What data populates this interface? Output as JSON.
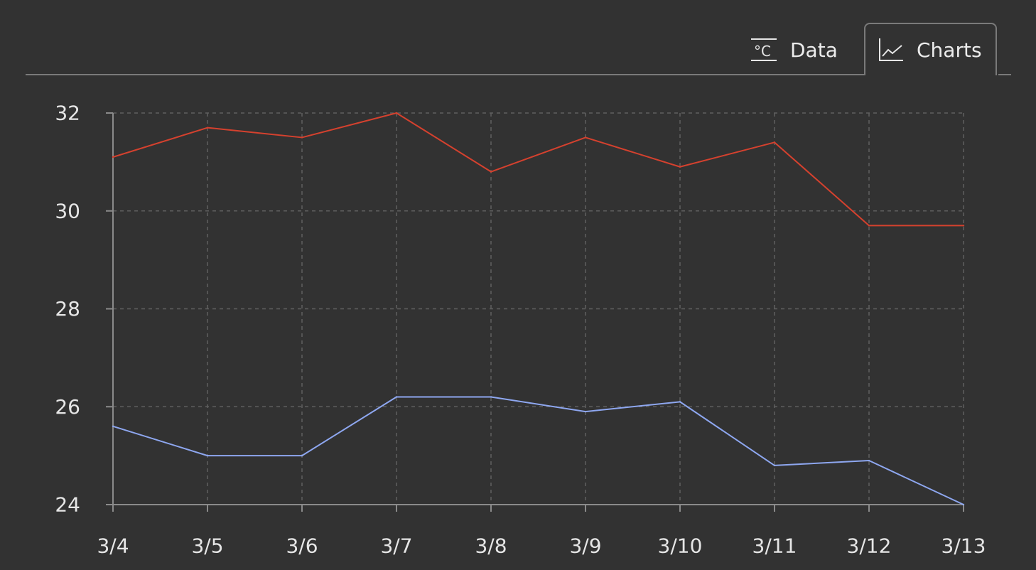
{
  "tabs": [
    {
      "label": "Data",
      "icon": "thermometer-celsius-icon",
      "active": false
    },
    {
      "label": "Charts",
      "icon": "line-chart-icon",
      "active": true
    }
  ],
  "colors": {
    "background": "#323232",
    "high_series": "#d5412e",
    "low_series": "#8ea7f0",
    "grid": "#5f5f5f",
    "axis": "#8a8a8a"
  },
  "chart_data": {
    "type": "line",
    "categories": [
      "3/4",
      "3/5",
      "3/6",
      "3/7",
      "3/8",
      "3/9",
      "3/10",
      "3/11",
      "3/12",
      "3/13"
    ],
    "series": [
      {
        "values": [
          31.1,
          31.7,
          31.5,
          32.0,
          30.8,
          31.5,
          30.9,
          31.4,
          29.7,
          29.7
        ]
      },
      {
        "values": [
          25.6,
          25.0,
          25.0,
          26.2,
          26.2,
          25.9,
          26.1,
          24.8,
          24.9,
          24.0
        ]
      }
    ],
    "yticks": [
      "24",
      "26",
      "28",
      "30",
      "32"
    ],
    "ylim": [
      24,
      32
    ],
    "grid": true,
    "legend": "none"
  }
}
